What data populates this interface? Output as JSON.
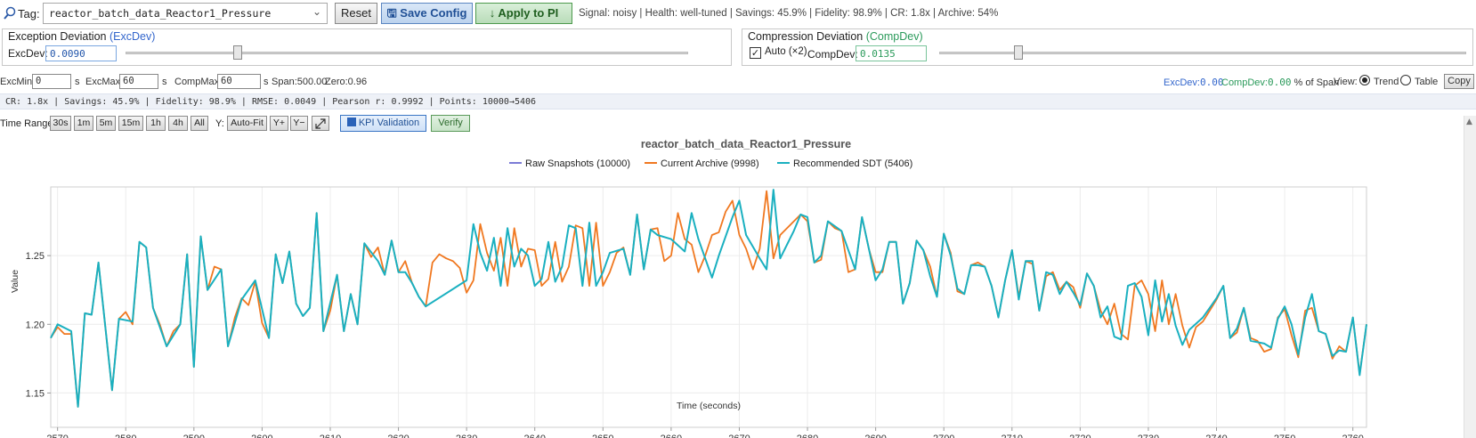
{
  "tag": {
    "label": "Tag:",
    "value": "reactor_batch_data_Reactor1_Pressure",
    "icon": "search-icon"
  },
  "toolbar": {
    "reset_label": "Reset",
    "save_label": "Save Config",
    "apply_label": "Apply to PI",
    "status": "Signal: noisy | Health: well-tuned | Savings: 45.9% | Fidelity: 98.9% | CR: 1.8x | Archive: 54%"
  },
  "exc_panel": {
    "title": "Exception Deviation",
    "abbr": "(ExcDev)",
    "label": "ExcDev:",
    "value": "0.0090",
    "slider_fraction": 0.2
  },
  "comp_panel": {
    "title": "Compression Deviation",
    "abbr": "(CompDev)",
    "auto_checked": true,
    "auto_label": "Auto (×2)",
    "label": "CompDev:",
    "value": "0.0135",
    "slider_fraction": 0.15
  },
  "params": {
    "excmin_label": "ExcMin:",
    "excmin_value": "0",
    "excmin_unit": "s",
    "excmax_label": "ExcMax:",
    "excmax_value": "60",
    "excmax_unit": "s",
    "compmax_label": "CompMax:",
    "compmax_value": "60",
    "compmax_unit": "s",
    "span": "Span:500.00",
    "zero": "Zero:0.96",
    "excdev_pct_label": "ExcDev:",
    "excdev_pct_value": "0.00",
    "compdev_pct_label": "CompDev:",
    "compdev_pct_value": "0.00",
    "pct_suffix": "% of Span",
    "view_label": "View:",
    "view_trend": "Trend",
    "view_table": "Table",
    "copy_label": "Copy"
  },
  "metrics": "CR: 1.8x | Savings: 45.9% | Fidelity: 98.9% | RMSE: 0.0049 | Pearson r: 0.9992 | Points: 10000→5406",
  "timerange": {
    "label": "Time Range:",
    "buttons": [
      "30s",
      "1m",
      "5m",
      "15m",
      "1h",
      "4h",
      "All"
    ],
    "y_label": "Y:",
    "autofit": "Auto-Fit",
    "yplus": "Y+",
    "yminus": "Y−",
    "expand_icon": "expand-icon",
    "kpi_label": "KPI Validation",
    "verify_label": "Verify"
  },
  "colors": {
    "raw": "#7b7bd6",
    "archive": "#f07820",
    "sdt": "#1ab0c0"
  },
  "chart_data": {
    "type": "line",
    "title": "reactor_batch_data_Reactor1_Pressure",
    "xlabel": "Time (seconds)",
    "ylabel": "Value",
    "xlim": [
      2569,
      2762
    ],
    "ylim": [
      1.125,
      1.3
    ],
    "xticks": [
      2570,
      2580,
      2590,
      2600,
      2610,
      2620,
      2630,
      2640,
      2650,
      2660,
      2670,
      2680,
      2690,
      2700,
      2710,
      2720,
      2730,
      2740,
      2750,
      2760
    ],
    "yticks": [
      1.15,
      1.2,
      1.25
    ],
    "grid": true,
    "legend_position": "top-center",
    "series": [
      {
        "name": "Raw Snapshots (10000)",
        "color": "#7b7bd6",
        "x": [],
        "y": []
      },
      {
        "name": "Current Archive (9998)",
        "color": "#f07820",
        "x": [
          2569,
          2570,
          2571,
          2572,
          2573,
          2574,
          2575,
          2576,
          2578,
          2579,
          2580,
          2581,
          2582,
          2583,
          2584,
          2585,
          2586,
          2587,
          2588,
          2589,
          2590,
          2591,
          2592,
          2593,
          2594,
          2595,
          2596,
          2597,
          2598,
          2599,
          2600,
          2601,
          2602,
          2603,
          2604,
          2605,
          2606,
          2607,
          2608,
          2609,
          2610,
          2611,
          2612,
          2613,
          2614,
          2615,
          2616,
          2617,
          2618,
          2619,
          2620,
          2621,
          2622,
          2623,
          2624,
          2625,
          2626,
          2627,
          2628,
          2629,
          2630,
          2631,
          2632,
          2633,
          2634,
          2635,
          2636,
          2637,
          2638,
          2639,
          2640,
          2641,
          2642,
          2643,
          2644,
          2645,
          2646,
          2647,
          2648,
          2649,
          2650,
          2651,
          2652,
          2653,
          2654,
          2655,
          2656,
          2657,
          2658,
          2659,
          2660,
          2661,
          2662,
          2663,
          2664,
          2665,
          2666,
          2667,
          2668,
          2669,
          2670,
          2671,
          2672,
          2673,
          2674,
          2675,
          2676,
          2677,
          2678,
          2679,
          2680,
          2681,
          2682,
          2683,
          2684,
          2685,
          2686,
          2687,
          2688,
          2689,
          2690,
          2691,
          2692,
          2693,
          2694,
          2695,
          2696,
          2697,
          2698,
          2699,
          2700,
          2701,
          2702,
          2703,
          2704,
          2705,
          2706,
          2707,
          2708,
          2709,
          2710,
          2711,
          2712,
          2713,
          2714,
          2715,
          2716,
          2717,
          2718,
          2719,
          2720,
          2721,
          2722,
          2723,
          2724,
          2725,
          2726,
          2727,
          2728,
          2729,
          2730,
          2731,
          2732,
          2733,
          2734,
          2735,
          2736,
          2737,
          2738,
          2739,
          2740,
          2741,
          2742,
          2743,
          2744,
          2745,
          2746,
          2747,
          2748,
          2749,
          2750,
          2751,
          2752,
          2753,
          2754,
          2755,
          2756,
          2757,
          2758,
          2759,
          2760,
          2761,
          2762
        ],
        "y": [
          1.19,
          1.198,
          1.193,
          1.193,
          1.14,
          1.208,
          1.207,
          1.245,
          1.152,
          1.204,
          1.209,
          1.2,
          1.26,
          1.256,
          1.212,
          1.2,
          1.184,
          1.195,
          1.2,
          1.251,
          1.169,
          1.264,
          1.225,
          1.242,
          1.24,
          1.184,
          1.205,
          1.219,
          1.214,
          1.231,
          1.201,
          1.19,
          1.251,
          1.23,
          1.253,
          1.215,
          1.206,
          1.212,
          1.281,
          1.195,
          1.21,
          1.236,
          1.195,
          1.222,
          1.2,
          1.259,
          1.249,
          1.256,
          1.236,
          1.261,
          1.238,
          1.246,
          1.23,
          1.22,
          1.213,
          1.245,
          1.251,
          1.248,
          1.246,
          1.241,
          1.223,
          1.232,
          1.273,
          1.252,
          1.239,
          1.263,
          1.228,
          1.27,
          1.242,
          1.255,
          1.254,
          1.228,
          1.233,
          1.26,
          1.231,
          1.242,
          1.272,
          1.27,
          1.228,
          1.274,
          1.228,
          1.238,
          1.252,
          1.256,
          1.236,
          1.28,
          1.24,
          1.269,
          1.27,
          1.246,
          1.25,
          1.281,
          1.262,
          1.258,
          1.238,
          1.25,
          1.265,
          1.267,
          1.282,
          1.29,
          1.265,
          1.255,
          1.24,
          1.255,
          1.297,
          1.248,
          1.265,
          1.27,
          1.275,
          1.28,
          1.275,
          1.245,
          1.247,
          1.275,
          1.27,
          1.268,
          1.238,
          1.24,
          1.278,
          1.255,
          1.238,
          1.238,
          1.26,
          1.26,
          1.215,
          1.23,
          1.261,
          1.254,
          1.242,
          1.22,
          1.266,
          1.252,
          1.224,
          1.222,
          1.243,
          1.245,
          1.242,
          1.228,
          1.205,
          1.232,
          1.254,
          1.22,
          1.246,
          1.244,
          1.21,
          1.235,
          1.238,
          1.225,
          1.231,
          1.227,
          1.212,
          1.237,
          1.228,
          1.21,
          1.2,
          1.215,
          1.193,
          1.189,
          1.228,
          1.232,
          1.222,
          1.195,
          1.232,
          1.2,
          1.222,
          1.199,
          1.183,
          1.198,
          1.202,
          1.21,
          1.218,
          1.228,
          1.19,
          1.194,
          1.212,
          1.19,
          1.188,
          1.18,
          1.182,
          1.205,
          1.211,
          1.192,
          1.176,
          1.21,
          1.212,
          1.195,
          1.193,
          1.175,
          1.184,
          1.18,
          1.205,
          1.164,
          1.2
        ]
      },
      {
        "name": "Recommended SDT (5406)",
        "color": "#1ab0c0",
        "x": [
          2569,
          2570,
          2572,
          2573,
          2574,
          2575,
          2576,
          2578,
          2579,
          2581,
          2582,
          2583,
          2584,
          2586,
          2588,
          2589,
          2590,
          2591,
          2592,
          2594,
          2595,
          2597,
          2599,
          2601,
          2602,
          2603,
          2604,
          2605,
          2606,
          2607,
          2608,
          2609,
          2611,
          2612,
          2613,
          2614,
          2615,
          2617,
          2618,
          2619,
          2620,
          2621,
          2622,
          2623,
          2624,
          2630,
          2631,
          2632,
          2633,
          2634,
          2635,
          2636,
          2637,
          2638,
          2639,
          2640,
          2641,
          2642,
          2643,
          2644,
          2645,
          2646,
          2647,
          2648,
          2649,
          2650,
          2651,
          2653,
          2654,
          2655,
          2656,
          2657,
          2658,
          2660,
          2662,
          2663,
          2664,
          2666,
          2667,
          2669,
          2670,
          2671,
          2673,
          2674,
          2675,
          2676,
          2678,
          2679,
          2680,
          2681,
          2682,
          2683,
          2685,
          2687,
          2688,
          2689,
          2690,
          2691,
          2692,
          2693,
          2694,
          2695,
          2696,
          2697,
          2698,
          2699,
          2700,
          2701,
          2702,
          2703,
          2704,
          2705,
          2706,
          2707,
          2708,
          2709,
          2710,
          2711,
          2712,
          2713,
          2714,
          2715,
          2716,
          2717,
          2718,
          2719,
          2720,
          2721,
          2722,
          2723,
          2724,
          2725,
          2726,
          2727,
          2728,
          2729,
          2730,
          2731,
          2732,
          2733,
          2734,
          2735,
          2736,
          2738,
          2739,
          2740,
          2741,
          2742,
          2743,
          2744,
          2745,
          2747,
          2748,
          2749,
          2750,
          2751,
          2752,
          2753,
          2754,
          2755,
          2756,
          2757,
          2758,
          2759,
          2760,
          2761,
          2762
        ],
        "y": [
          1.19,
          1.2,
          1.195,
          1.14,
          1.208,
          1.207,
          1.245,
          1.152,
          1.204,
          1.202,
          1.26,
          1.256,
          1.212,
          1.184,
          1.2,
          1.251,
          1.169,
          1.264,
          1.225,
          1.24,
          1.184,
          1.218,
          1.232,
          1.19,
          1.251,
          1.23,
          1.253,
          1.215,
          1.206,
          1.212,
          1.281,
          1.195,
          1.236,
          1.195,
          1.222,
          1.2,
          1.259,
          1.246,
          1.236,
          1.261,
          1.238,
          1.238,
          1.23,
          1.22,
          1.213,
          1.232,
          1.273,
          1.252,
          1.239,
          1.263,
          1.228,
          1.27,
          1.242,
          1.255,
          1.25,
          1.228,
          1.233,
          1.26,
          1.231,
          1.242,
          1.272,
          1.27,
          1.228,
          1.274,
          1.228,
          1.238,
          1.252,
          1.255,
          1.236,
          1.28,
          1.24,
          1.269,
          1.265,
          1.262,
          1.253,
          1.281,
          1.262,
          1.234,
          1.25,
          1.278,
          1.29,
          1.265,
          1.248,
          1.24,
          1.298,
          1.248,
          1.268,
          1.28,
          1.278,
          1.245,
          1.25,
          1.275,
          1.268,
          1.24,
          1.278,
          1.255,
          1.232,
          1.24,
          1.26,
          1.26,
          1.215,
          1.23,
          1.261,
          1.254,
          1.235,
          1.22,
          1.266,
          1.25,
          1.226,
          1.222,
          1.243,
          1.243,
          1.242,
          1.228,
          1.205,
          1.232,
          1.254,
          1.218,
          1.246,
          1.246,
          1.21,
          1.238,
          1.236,
          1.222,
          1.231,
          1.223,
          1.214,
          1.237,
          1.228,
          1.205,
          1.213,
          1.191,
          1.189,
          1.228,
          1.23,
          1.22,
          1.192,
          1.232,
          1.202,
          1.222,
          1.199,
          1.185,
          1.196,
          1.205,
          1.212,
          1.219,
          1.228,
          1.19,
          1.197,
          1.212,
          1.188,
          1.186,
          1.183,
          1.204,
          1.213,
          1.2,
          1.178,
          1.205,
          1.222,
          1.195,
          1.193,
          1.177,
          1.181,
          1.18,
          1.205,
          1.163,
          1.2
        ]
      }
    ]
  }
}
